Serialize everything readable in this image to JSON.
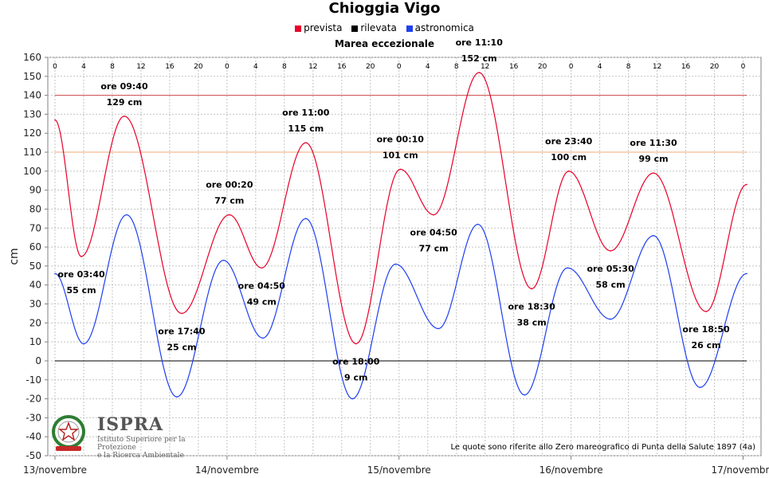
{
  "chart_data": {
    "type": "line",
    "title": "Chioggia Vigo",
    "subtitle": "Marea eccezionale",
    "ylabel": "cm",
    "xlabel": "",
    "ylim": [
      -50,
      160
    ],
    "yticks": [
      -50,
      -40,
      -30,
      -20,
      -10,
      0,
      10,
      20,
      30,
      40,
      50,
      60,
      70,
      80,
      90,
      100,
      110,
      120,
      130,
      140,
      150,
      160
    ],
    "grid": true,
    "legend": {
      "position": "top",
      "entries": [
        {
          "name": "prevista",
          "color": "#e8002a"
        },
        {
          "name": "rilevata",
          "color": "#000000"
        },
        {
          "name": "astronomica",
          "color": "#1e3ff0"
        }
      ]
    },
    "x_unit": "hours since 13/novembre 00:00",
    "xlim": [
      -1,
      98.5
    ],
    "date_labels": [
      {
        "hour": 0,
        "label": "13/novembre"
      },
      {
        "hour": 24,
        "label": "14/novembre"
      },
      {
        "hour": 48,
        "label": "15/novembre"
      },
      {
        "hour": 72,
        "label": "16/novembre"
      },
      {
        "hour": 96,
        "label": "17/novembre"
      }
    ],
    "hour_ticks": [
      "0",
      "4",
      "8",
      "12",
      "16",
      "20",
      "0",
      "4",
      "8",
      "12",
      "16",
      "20",
      "0",
      "4",
      "8",
      "12",
      "16",
      "20",
      "0",
      "4",
      "8",
      "12",
      "16",
      "20",
      "0"
    ],
    "reference_lines": [
      {
        "value": 140,
        "color": "#d24a4a"
      },
      {
        "value": 110,
        "color": "#f0a878"
      },
      {
        "value": 0,
        "color": "#000000"
      }
    ],
    "series": [
      {
        "name": "prevista",
        "color": "#e8002a",
        "x": [
          0,
          3.67,
          9.67,
          17.67,
          24.33,
          28.83,
          35,
          42,
          48.17,
          52.83,
          59.17,
          66.5,
          71.67,
          77.5,
          83.5,
          90.83,
          96.5
        ],
        "y": [
          127,
          55,
          129,
          25,
          77,
          49,
          115,
          9,
          101,
          77,
          152,
          38,
          100,
          58,
          99,
          26,
          93
        ]
      },
      {
        "name": "astronomica",
        "color": "#1e3ff0",
        "x": [
          0,
          4,
          10,
          17,
          23.5,
          29,
          35,
          41.5,
          47.5,
          53.5,
          59,
          65.5,
          71.5,
          77.5,
          83.5,
          90,
          96.5
        ],
        "y": [
          46,
          9,
          77,
          -19,
          53,
          12,
          75,
          -20,
          51,
          17,
          72,
          -18,
          49,
          22,
          66,
          -14,
          46
        ]
      }
    ],
    "annotations": [
      {
        "time": "ore 03:40",
        "value": "55 cm"
      },
      {
        "time": "ore 09:40",
        "value": "129 cm"
      },
      {
        "time": "ore 17:40",
        "value": "25 cm"
      },
      {
        "time": "ore 00:20",
        "value": "77 cm"
      },
      {
        "time": "ore 04:50",
        "value": "49 cm"
      },
      {
        "time": "ore 11:00",
        "value": "115 cm"
      },
      {
        "time": "ore 18:00",
        "value": "9 cm"
      },
      {
        "time": "ore 00:10",
        "value": "101 cm"
      },
      {
        "time": "ore 04:50",
        "value": "77 cm"
      },
      {
        "time": "ore 11:10",
        "value": "152 cm"
      },
      {
        "time": "ore 18:30",
        "value": "38 cm"
      },
      {
        "time": "ore 23:40",
        "value": "100 cm"
      },
      {
        "time": "ore 05:30",
        "value": "58 cm"
      },
      {
        "time": "ore 11:30",
        "value": "99 cm"
      },
      {
        "time": "ore 18:50",
        "value": "26 cm"
      }
    ],
    "footnote": "Le quote sono riferite allo Zero mareografico di Punta della Salute 1897 (4a)"
  },
  "logo": {
    "name": "ISPRA",
    "line1": "Istituto Superiore per la Protezione",
    "line2": "e la Ricerca Ambientale"
  }
}
